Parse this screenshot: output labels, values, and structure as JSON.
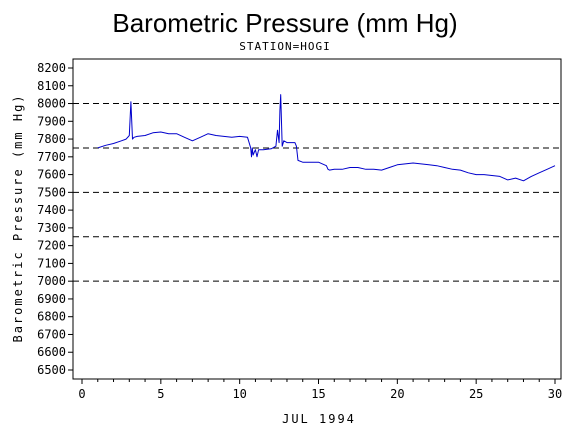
{
  "chart_data": {
    "type": "line",
    "title": "Barometric Pressure (mm Hg)",
    "subtitle": "STATION=HOGI",
    "xlabel": "JUL 1994",
    "ylabel": "Barometric Pressure (mm Hg)",
    "xlim": [
      0,
      30
    ],
    "ylim": [
      6500,
      8200
    ],
    "x_ticks": [
      0,
      5,
      10,
      15,
      20,
      25,
      30
    ],
    "y_ticks": [
      6500,
      6600,
      6700,
      6800,
      6900,
      7000,
      7100,
      7200,
      7300,
      7400,
      7500,
      7600,
      7700,
      7800,
      7900,
      8000,
      8100,
      8200
    ],
    "reference_lines": [
      8000,
      7750,
      7500,
      7250,
      7000
    ],
    "grid": false,
    "series_color": "#0000cc",
    "series": [
      {
        "x": [
          1.0,
          1.5,
          2.0,
          2.5,
          2.8,
          3.0,
          3.1,
          3.2,
          3.3,
          3.5,
          4.0,
          4.5,
          5.0,
          5.5,
          6.0,
          6.5,
          7.0,
          7.5,
          8.0,
          8.5,
          9.0,
          9.5,
          10.0,
          10.5,
          10.7,
          10.75,
          10.8,
          10.85,
          11.0,
          11.1,
          11.2,
          11.5,
          12.0,
          12.3,
          12.4,
          12.5,
          12.55,
          12.6,
          12.7,
          12.8,
          13.0,
          13.5,
          13.6,
          13.7,
          14.0,
          14.5,
          15.0,
          15.5,
          15.6,
          15.7,
          16.0,
          16.5,
          17.0,
          17.5,
          18.0,
          18.5,
          19.0,
          19.5,
          20.0,
          20.5,
          21.0,
          21.5,
          22.0,
          22.5,
          23.0,
          23.5,
          24.0,
          24.5,
          25.0,
          25.5,
          26.0,
          26.5,
          27.0,
          27.5,
          28.0,
          28.5,
          29.0,
          29.5,
          30.0
        ],
        "y": [
          7750,
          7765,
          7775,
          7790,
          7800,
          7820,
          8010,
          7800,
          7810,
          7815,
          7820,
          7835,
          7840,
          7830,
          7830,
          7810,
          7790,
          7810,
          7830,
          7820,
          7815,
          7810,
          7815,
          7810,
          7750,
          7700,
          7750,
          7710,
          7740,
          7700,
          7740,
          7740,
          7745,
          7760,
          7850,
          7780,
          7960,
          8050,
          7760,
          7790,
          7780,
          7780,
          7760,
          7680,
          7670,
          7670,
          7670,
          7650,
          7630,
          7625,
          7630,
          7630,
          7640,
          7640,
          7630,
          7630,
          7625,
          7640,
          7655,
          7660,
          7665,
          7660,
          7655,
          7650,
          7640,
          7630,
          7625,
          7610,
          7600,
          7600,
          7595,
          7590,
          7570,
          7580,
          7565,
          7590,
          7610,
          7630,
          7650
        ]
      }
    ]
  }
}
